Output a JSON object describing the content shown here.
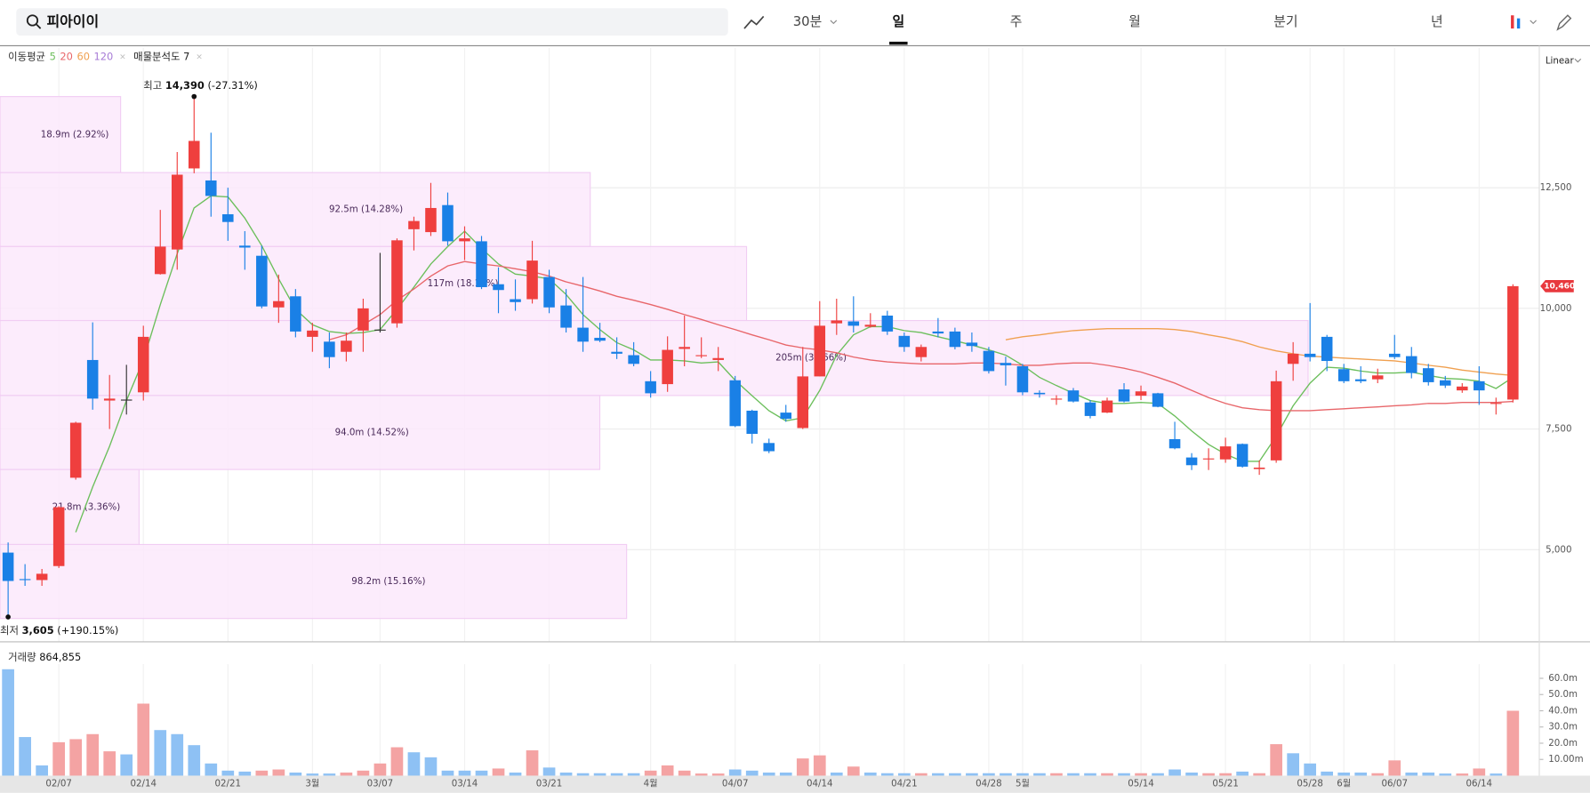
{
  "toolbar": {
    "search": "피아이이",
    "interval": "30분",
    "tabs": [
      "일",
      "주",
      "월",
      "분기",
      "년"
    ],
    "active_tab": 0,
    "scale": "Linear"
  },
  "chart_data": {
    "type": "candlestick",
    "categories": [
      null,
      null,
      null,
      "02/07",
      null,
      null,
      null,
      null,
      "02/14",
      null,
      null,
      null,
      null,
      "02/21",
      null,
      null,
      null,
      null,
      "3월",
      null,
      null,
      null,
      "03/07",
      null,
      null,
      null,
      null,
      "03/14",
      null,
      null,
      null,
      null,
      "03/21",
      null,
      null,
      null,
      null,
      null,
      "4월",
      null,
      null,
      null,
      null,
      "04/07",
      null,
      null,
      null,
      null,
      "04/14",
      null,
      null,
      null,
      null,
      "04/21",
      null,
      null,
      null,
      null,
      "04/28",
      null,
      "5월",
      null,
      null,
      null,
      null,
      null,
      null,
      "05/14",
      null,
      null,
      null,
      null,
      "05/21",
      null,
      null,
      null,
      null,
      "05/28",
      null,
      "6월",
      null,
      null,
      "06/07",
      null,
      null,
      null,
      null,
      "06/14",
      null,
      null
    ],
    "open": [
      4939,
      4390,
      4370,
      4660,
      6490,
      8930,
      8090,
      8110,
      8260,
      10710,
      11220,
      12900,
      12650,
      11950,
      11300,
      11090,
      10020,
      10250,
      9410,
      9310,
      9100,
      9540,
      9560,
      9690,
      11640,
      11580,
      12140,
      11390,
      11390,
      10500,
      10190,
      10190,
      10650,
      10060,
      9600,
      9390,
      9100,
      9030,
      8490,
      8430,
      9160,
      9010,
      8930,
      8510,
      7880,
      7210,
      7840,
      7520,
      8590,
      9690,
      9730,
      9620,
      9850,
      9430,
      8990,
      9520,
      9520,
      9290,
      9120,
      8870,
      8800,
      8250,
      8110,
      8300,
      8050,
      7840,
      8320,
      8190,
      8240,
      7290,
      6910,
      6870,
      6870,
      7190,
      6670,
      6850,
      8850,
      9060,
      9410,
      8740,
      8530,
      8530,
      9060,
      9010,
      8760,
      8510,
      8300,
      8490,
      8030,
      8110
    ],
    "high": [
      5149,
      4700,
      4600,
      5900,
      7650,
      9710,
      8620,
      8830,
      9640,
      12040,
      13240,
      14390,
      13640,
      12500,
      11600,
      11300,
      10700,
      10400,
      9700,
      9500,
      9500,
      10200,
      11150,
      11450,
      11900,
      12600,
      12400,
      11700,
      11500,
      10850,
      10600,
      11400,
      10800,
      10400,
      10650,
      9700,
      9400,
      9300,
      8700,
      9420,
      9850,
      9400,
      9200,
      8600,
      7900,
      7300,
      8000,
      9200,
      10150,
      10200,
      10250,
      9900,
      9950,
      9500,
      9250,
      9800,
      9600,
      9500,
      9200,
      9000,
      8850,
      8300,
      8200,
      8350,
      8100,
      8150,
      8450,
      8400,
      8250,
      7650,
      7000,
      7100,
      7320,
      7200,
      6850,
      8710,
      9300,
      10110,
      9450,
      8850,
      8800,
      8750,
      9450,
      9200,
      8850,
      8600,
      8450,
      8800,
      8150,
      10500
    ],
    "low": [
      3605,
      4250,
      4250,
      4620,
      6450,
      7900,
      7500,
      7800,
      8090,
      10700,
      10800,
      12800,
      11900,
      11400,
      10800,
      10000,
      9700,
      9400,
      9100,
      8760,
      8900,
      9100,
      9500,
      9600,
      11200,
      11500,
      11300,
      11000,
      10400,
      9900,
      9950,
      10100,
      9900,
      9500,
      9100,
      9300,
      8950,
      8800,
      8150,
      8270,
      8800,
      8970,
      8700,
      7540,
      7200,
      7000,
      7650,
      7500,
      8590,
      9450,
      9500,
      9600,
      9450,
      9100,
      8900,
      9400,
      9150,
      9100,
      8650,
      8400,
      8200,
      8150,
      8000,
      8050,
      7720,
      7830,
      8050,
      8100,
      7950,
      7080,
      6650,
      6650,
      6800,
      6700,
      6550,
      6800,
      8500,
      8900,
      8700,
      8450,
      8450,
      8450,
      8950,
      8550,
      8400,
      8350,
      8250,
      8000,
      7800,
      8050
    ],
    "close": [
      4351,
      4370,
      4500,
      5880,
      7630,
      8130,
      8130,
      8110,
      9410,
      11280,
      12770,
      13470,
      12330,
      11790,
      11260,
      10040,
      10150,
      9520,
      9540,
      8990,
      9330,
      10000,
      9560,
      11410,
      11810,
      12080,
      11390,
      11450,
      10440,
      10380,
      10130,
      10990,
      10020,
      9600,
      9310,
      9330,
      9060,
      8850,
      8240,
      9140,
      9200,
      9030,
      8970,
      7560,
      7400,
      7040,
      7710,
      8590,
      9640,
      9750,
      9640,
      9660,
      9520,
      9200,
      9200,
      9480,
      9200,
      9220,
      8700,
      8820,
      8260,
      8220,
      8130,
      8070,
      7770,
      8090,
      8070,
      8280,
      7960,
      7100,
      6750,
      6890,
      7140,
      6720,
      6700,
      8490,
      9060,
      8990,
      8910,
      8490,
      8490,
      8610,
      8990,
      8660,
      8470,
      8400,
      8380,
      8300,
      8040,
      10460
    ],
    "up_color": "#ef3f3e",
    "down_color": "#1a80e6",
    "flat_color": "#333333",
    "ylim": [
      3090,
      15400
    ],
    "yticks": [
      {
        "value": 5000,
        "label": "5,000"
      },
      {
        "value": 7500,
        "label": "7,500"
      },
      {
        "value": 10000,
        "label": "10,000"
      },
      {
        "value": 12500,
        "label": "12,500"
      }
    ],
    "grid": true,
    "ma_label": "이동평균",
    "moving_averages": [
      {
        "name": "5",
        "color": "#6cbf5c",
        "values": [
          null,
          null,
          null,
          null,
          5360,
          6300,
          7140,
          8090,
          8930,
          10080,
          11130,
          12080,
          12330,
          12310,
          11870,
          11300,
          10610,
          9980,
          9660,
          9520,
          9480,
          9500,
          9560,
          9980,
          10440,
          10920,
          11280,
          11600,
          11240,
          10920,
          10710,
          10670,
          10610,
          10290,
          9870,
          9560,
          9290,
          9140,
          8930,
          8930,
          8910,
          8870,
          8890,
          8510,
          8190,
          7880,
          7670,
          7730,
          8300,
          9030,
          9450,
          9620,
          9620,
          9540,
          9500,
          9410,
          9330,
          9240,
          9140,
          9030,
          8820,
          8570,
          8400,
          8240,
          8090,
          8030,
          8030,
          8050,
          8030,
          7770,
          7460,
          7180,
          6980,
          6830,
          6830,
          7350,
          7980,
          8450,
          8780,
          8760,
          8700,
          8660,
          8660,
          8680,
          8610,
          8550,
          8530,
          8490,
          8340,
          8570
        ]
      },
      {
        "name": "20",
        "color": "#e8666a",
        "values": [
          null,
          null,
          null,
          null,
          null,
          null,
          null,
          null,
          null,
          null,
          null,
          null,
          null,
          null,
          null,
          null,
          null,
          null,
          null,
          9350,
          9450,
          9660,
          9870,
          10170,
          10400,
          10670,
          10880,
          10970,
          10920,
          10880,
          10820,
          10760,
          10670,
          10550,
          10460,
          10360,
          10250,
          10170,
          10080,
          9980,
          9870,
          9770,
          9660,
          9560,
          9450,
          9350,
          9240,
          9180,
          9140,
          9080,
          8990,
          8930,
          8890,
          8870,
          8850,
          8850,
          8850,
          8870,
          8870,
          8850,
          8820,
          8820,
          8850,
          8870,
          8870,
          8820,
          8760,
          8680,
          8570,
          8450,
          8300,
          8150,
          8030,
          7940,
          7900,
          7880,
          7880,
          7880,
          7900,
          7920,
          7940,
          7960,
          7980,
          8000,
          8030,
          8030,
          8050,
          8050,
          8050,
          8070
        ]
      },
      {
        "name": "60",
        "color": "#f0a050",
        "values": [
          null,
          null,
          null,
          null,
          null,
          null,
          null,
          null,
          null,
          null,
          null,
          null,
          null,
          null,
          null,
          null,
          null,
          null,
          null,
          null,
          null,
          null,
          null,
          null,
          null,
          null,
          null,
          null,
          null,
          null,
          null,
          null,
          null,
          null,
          null,
          null,
          null,
          null,
          null,
          null,
          null,
          null,
          null,
          null,
          null,
          null,
          null,
          null,
          null,
          null,
          null,
          null,
          null,
          null,
          null,
          null,
          null,
          null,
          null,
          9350,
          9410,
          9450,
          9500,
          9540,
          9560,
          9580,
          9580,
          9580,
          9580,
          9560,
          9520,
          9450,
          9390,
          9310,
          9200,
          9120,
          9060,
          9010,
          8990,
          8970,
          8950,
          8930,
          8910,
          8870,
          8820,
          8780,
          8720,
          8680,
          8640,
          8610
        ]
      },
      {
        "name": "120",
        "color": "#a77bd6",
        "values": [
          null,
          null,
          null,
          null,
          null,
          null,
          null,
          null,
          null,
          null,
          null,
          null,
          null,
          null,
          null,
          null,
          null,
          null,
          null,
          null,
          null,
          null,
          null,
          null,
          null,
          null,
          null,
          null,
          null,
          null,
          null,
          null,
          null,
          null,
          null,
          null,
          null,
          null,
          null,
          null,
          null,
          null,
          null,
          null,
          null,
          null,
          null,
          null,
          null,
          null,
          null,
          null,
          null,
          null,
          null,
          null,
          null,
          null,
          null,
          null,
          null,
          null,
          null,
          null,
          null,
          null,
          null,
          null,
          null,
          null,
          null,
          null,
          null,
          null,
          null,
          null,
          null,
          null,
          null,
          null,
          null,
          null,
          null,
          null,
          null,
          null,
          null,
          null,
          null,
          null
        ]
      }
    ],
    "profile_label": "매물분석도 7",
    "profile_fill": "#fbe9fc",
    "profile_stroke": "#f1cdf3",
    "volume_profile": [
      {
        "low": 12814,
        "high": 14389,
        "volume": 18.9,
        "label": "18.9m (2.92%)"
      },
      {
        "low": 11281,
        "high": 12814,
        "volume": 92.5,
        "label": "92.5m (14.28%)"
      },
      {
        "low": 9748,
        "high": 11281,
        "volume": 117,
        "label": "117m (18.10%)"
      },
      {
        "low": 8194,
        "high": 9748,
        "volume": 205,
        "label": "205m (31.66%)"
      },
      {
        "low": 6661,
        "high": 8194,
        "volume": 94.0,
        "label": "94.0m (14.52%)"
      },
      {
        "low": 5107,
        "high": 6661,
        "volume": 21.8,
        "label": "21.8m (3.36%)"
      },
      {
        "low": 3574,
        "high": 5107,
        "volume": 98.2,
        "label": "98.2m (15.16%)"
      }
    ],
    "max_annotation": {
      "label": "최고",
      "value": 14390,
      "value_label": "14,390",
      "change": "(-27.31%)"
    },
    "min_annotation": {
      "label": "최저",
      "value": 3605,
      "value_label": "3,605",
      "change": "(+190.15%)"
    },
    "last_price": {
      "value": 10460,
      "label": "10,460",
      "color": "#e8383d"
    },
    "volume": {
      "label": "거래량",
      "total": "864,855",
      "values": [
        65.6,
        23.8,
        6.3,
        20.6,
        22.5,
        25.6,
        15,
        13.1,
        44.4,
        28.1,
        25.6,
        18.8,
        7.5,
        3.1,
        2.5,
        3.1,
        3.8,
        1.9,
        1.3,
        1.3,
        1.9,
        3.1,
        7.5,
        17.5,
        14.4,
        11.3,
        3.1,
        3.1,
        3.1,
        4.4,
        1.9,
        15.6,
        5,
        1.9,
        1.5,
        1.5,
        1.5,
        1.5,
        3.1,
        6.3,
        3.1,
        1.3,
        1.3,
        3.8,
        3.1,
        1.9,
        1.9,
        10.6,
        12.5,
        1.9,
        5.6,
        1.9,
        1.5,
        1.5,
        1.5,
        1.5,
        1.5,
        1.5,
        1.5,
        1.5,
        1.5,
        1.5,
        1.5,
        1.5,
        1.5,
        1.5,
        1.5,
        1.5,
        1.5,
        3.8,
        1.9,
        1.5,
        1.5,
        2.5,
        1.5,
        19.4,
        13.8,
        7.5,
        2.5,
        1.9,
        1.9,
        1.5,
        9.4,
        1.9,
        1.9,
        1.3,
        1.3,
        4.4,
        1.3,
        40
      ],
      "direction": [
        "down",
        "down",
        "down",
        "up",
        "up",
        "up",
        "up",
        "down",
        "up",
        "down",
        "down",
        "down",
        "down",
        "down",
        "down",
        "up",
        "up",
        "down",
        "down",
        "down",
        "up",
        "up",
        "up",
        "up",
        "down",
        "down",
        "down",
        "down",
        "down",
        "up",
        "down",
        "up",
        "down",
        "down",
        "down",
        "down",
        "down",
        "down",
        "up",
        "up",
        "up",
        "up",
        "up",
        "down",
        "down",
        "down",
        "down",
        "up",
        "up",
        "down",
        "up",
        "down",
        "down",
        "down",
        "up",
        "down",
        "down",
        "down",
        "down",
        "down",
        "down",
        "down",
        "up",
        "down",
        "down",
        "up",
        "down",
        "up",
        "down",
        "down",
        "down",
        "up",
        "up",
        "down",
        "up",
        "up",
        "down",
        "down",
        "down",
        "down",
        "down",
        "up",
        "up",
        "down",
        "down",
        "down",
        "up",
        "up",
        "down",
        "up"
      ],
      "up_color": "#f4a3a3",
      "down_color": "#8ec1f4",
      "ylim": [
        0,
        70
      ],
      "yticks": [
        {
          "value": 10,
          "label": "10.00m"
        },
        {
          "value": 20,
          "label": "20.0m"
        },
        {
          "value": 30,
          "label": "30.0m"
        },
        {
          "value": 40,
          "label": "40.0m"
        },
        {
          "value": 50,
          "label": "50.0m"
        },
        {
          "value": 60,
          "label": "60.0m"
        }
      ]
    }
  }
}
